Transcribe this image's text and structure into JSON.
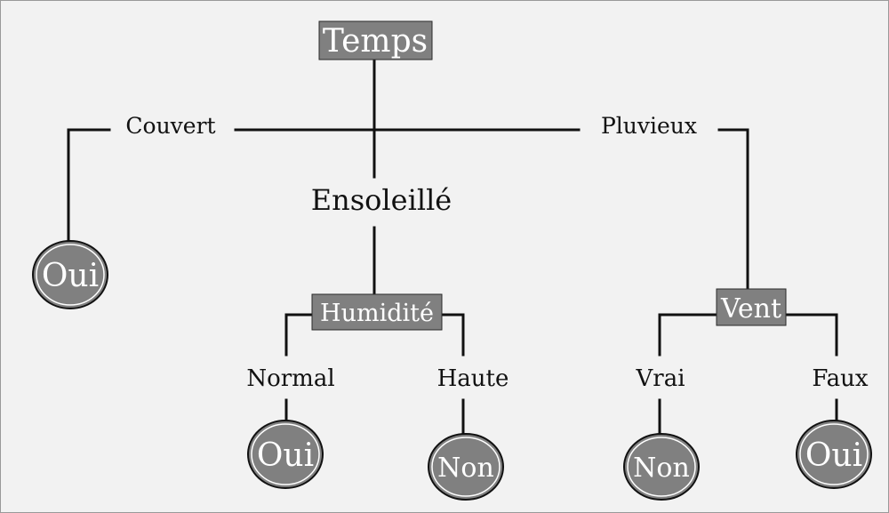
{
  "colors": {
    "background": "#f2f2f2",
    "node_fill": "#808080",
    "line": "#111111",
    "node_text": "#ffffff"
  },
  "tree": {
    "root": "Temps",
    "branches": {
      "couvert": "Couvert",
      "ensoleille": "Ensoleillé",
      "pluvieux": "Pluvieux"
    },
    "nodes": {
      "humidite": "Humidité",
      "vent": "Vent"
    },
    "humidite_branches": {
      "normal": "Normal",
      "haute": "Haute"
    },
    "vent_branches": {
      "vrai": "Vrai",
      "faux": "Faux"
    },
    "leaves": {
      "couvert": "Oui",
      "normal": "Oui",
      "haute": "Non",
      "vrai": "Non",
      "faux": "Oui"
    }
  }
}
